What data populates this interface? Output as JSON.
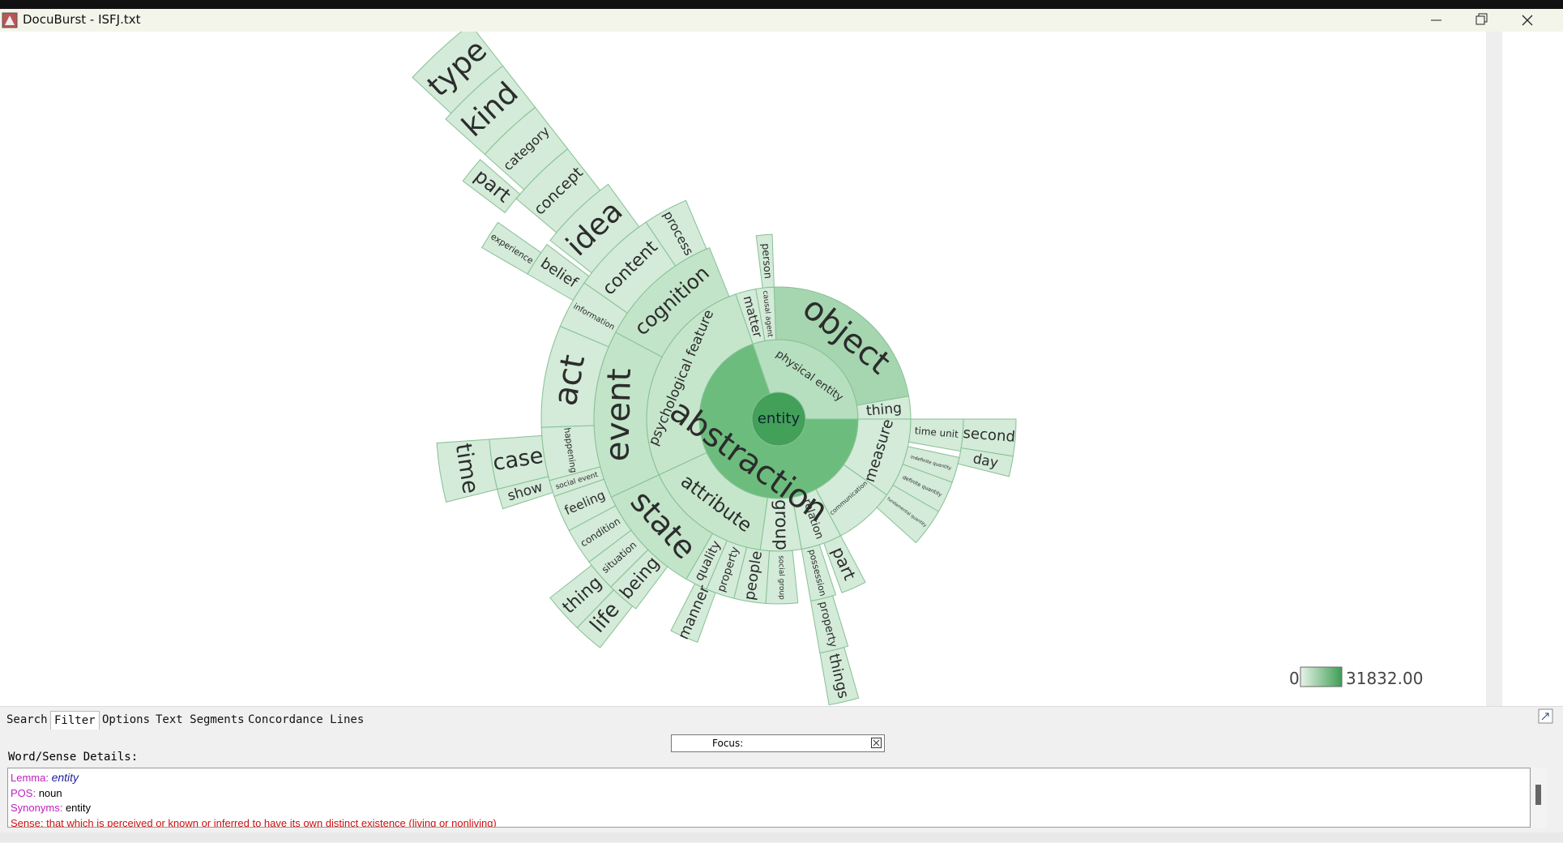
{
  "window": {
    "title": "DocuBurst - ISFJ.txt"
  },
  "sunburst": {
    "nodes": [
      "entity",
      "abstraction",
      "physical entity",
      "object",
      "thing",
      "causal agent",
      "matter",
      "psychological feature",
      "attribute",
      "group",
      "relation",
      "communication",
      "measure",
      "person",
      "cognition",
      "event",
      "state",
      "quality",
      "property",
      "people",
      "social group",
      "possession",
      "part",
      "fundamental quantity",
      "definite quantity",
      "indefinite quantity",
      "time unit",
      "second",
      "day",
      "process",
      "content",
      "information",
      "act",
      "happening",
      "social event",
      "feeling",
      "condition",
      "situation",
      "being",
      "manner",
      "property",
      "idea",
      "belief",
      "case",
      "show",
      "thing",
      "life",
      "things",
      "time",
      "concept",
      "category",
      "kind",
      "type",
      "part",
      "experience"
    ]
  },
  "legend": {
    "min": 0,
    "max": {
      "value": 31832,
      "label": "31832.00"
    }
  },
  "tabs": [
    "Search",
    "Filter",
    "Options",
    "Text Segments",
    "Concordance Lines"
  ],
  "focus": {
    "label": "Focus:"
  },
  "details": {
    "header": "Word/Sense Details:",
    "rows": [
      {
        "key": "Lemma:",
        "value": "entity"
      },
      {
        "key": "POS:",
        "value": "noun"
      },
      {
        "key": "Synonyms:",
        "value": "entity"
      },
      {
        "key": "Sense:",
        "value": "that which is perceived or known or inferred to have its own distinct existence (living or nonliving)"
      }
    ]
  }
}
